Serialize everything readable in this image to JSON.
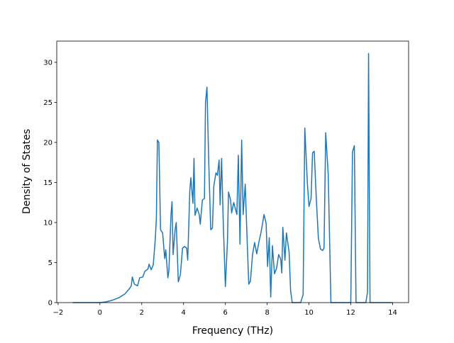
{
  "chart_data": {
    "type": "line",
    "xlabel": "Frequency (THz)",
    "ylabel": "Density of States",
    "color": "#1f77b4",
    "x": [
      -1.3,
      0,
      0.3,
      0.6,
      0.9,
      1.2,
      1.4,
      1.5,
      1.55,
      1.65,
      1.8,
      1.9,
      2.05,
      2.15,
      2.3,
      2.35,
      2.45,
      2.55,
      2.65,
      2.7,
      2.75,
      2.82,
      2.9,
      3.0,
      3.1,
      3.15,
      3.25,
      3.3,
      3.4,
      3.45,
      3.5,
      3.6,
      3.65,
      3.75,
      3.85,
      3.95,
      4.05,
      4.15,
      4.2,
      4.3,
      4.35,
      4.45,
      4.5,
      4.55,
      4.65,
      4.75,
      4.8,
      4.9,
      5.0,
      5.05,
      5.12,
      5.2,
      5.3,
      5.38,
      5.45,
      5.55,
      5.62,
      5.7,
      5.75,
      5.82,
      5.9,
      6.0,
      6.1,
      6.15,
      6.25,
      6.3,
      6.4,
      6.5,
      6.55,
      6.62,
      6.7,
      6.78,
      6.85,
      6.95,
      7.05,
      7.12,
      7.2,
      7.3,
      7.4,
      7.5,
      7.6,
      7.7,
      7.8,
      7.85,
      7.95,
      8.02,
      8.1,
      8.17,
      8.25,
      8.35,
      8.45,
      8.55,
      8.65,
      8.7,
      8.75,
      8.85,
      8.92,
      9.05,
      9.12,
      9.2,
      9.6,
      9.72,
      9.8,
      9.92,
      10.0,
      10.1,
      10.17,
      10.25,
      10.35,
      10.45,
      10.55,
      10.65,
      10.72,
      10.8,
      10.92,
      11.05,
      12.0,
      12.08,
      12.17,
      12.25,
      12.72,
      12.8,
      12.85,
      12.92,
      14.0
    ],
    "values": [
      0,
      0,
      0.1,
      0.3,
      0.6,
      1.1,
      1.7,
      2.1,
      3.2,
      2.3,
      2.1,
      3.1,
      3.2,
      3.9,
      4.2,
      4.8,
      4.1,
      4.7,
      8,
      10.5,
      20.3,
      20,
      9.1,
      8.7,
      5.5,
      6.6,
      3.1,
      4,
      11,
      12.6,
      6,
      9.2,
      10,
      2.6,
      3.5,
      6.8,
      7,
      6.8,
      5.3,
      14,
      15.6,
      12.4,
      18,
      10.9,
      11.8,
      11,
      9.8,
      12.8,
      13,
      25,
      26.9,
      18,
      9.1,
      9.3,
      14.6,
      16.2,
      15.9,
      17.8,
      12.2,
      18,
      10,
      2,
      7.6,
      13.8,
      12.8,
      11.2,
      12.5,
      11.5,
      11,
      18.4,
      7.3,
      20.3,
      11,
      14.8,
      7.2,
      2.3,
      2.7,
      6,
      7.5,
      6.1,
      7.5,
      8.7,
      10.2,
      11,
      9.9,
      4.5,
      8.1,
      0.7,
      7.1,
      3.6,
      4.3,
      6,
      5.4,
      3.7,
      9.4,
      5.3,
      8.7,
      6.3,
      1.5,
      0,
      0,
      1,
      21.8,
      15,
      12,
      13,
      18.7,
      18.9,
      13,
      8,
      6.7,
      6.5,
      6.8,
      21.2,
      16,
      0,
      0,
      18.8,
      19.6,
      0,
      0,
      1.3,
      31.1,
      0,
      0
    ],
    "xlim": [
      -2.065,
      14.765
    ],
    "ylim": [
      0,
      32.65
    ],
    "xticks": [
      {
        "value": -2,
        "label": "−2"
      },
      0,
      2,
      4,
      6,
      8,
      10,
      12,
      14
    ],
    "yticks": [
      0,
      5,
      10,
      15,
      20,
      25,
      30
    ]
  }
}
